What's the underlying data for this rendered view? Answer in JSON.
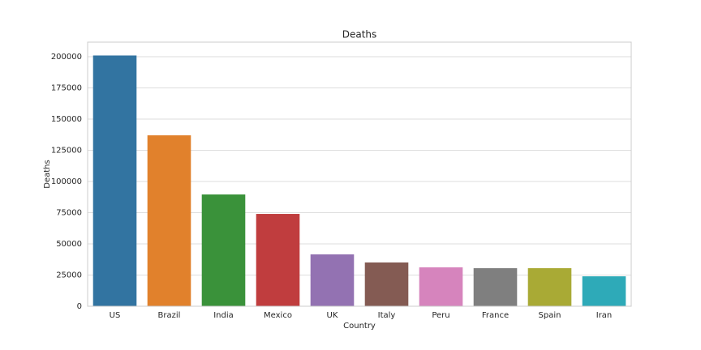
{
  "chart_data": {
    "type": "bar",
    "title": "Deaths",
    "x_label": "Country",
    "y_label": "Deaths",
    "categories": [
      "US",
      "Brazil",
      "India",
      "Mexico",
      "UK",
      "Italy",
      "Peru",
      "France",
      "Spain",
      "Iran"
    ],
    "values": [
      201000,
      137000,
      89600,
      74000,
      41600,
      35100,
      31200,
      30500,
      30500,
      24000
    ],
    "colors": [
      "#3274a1",
      "#e1812c",
      "#3a923a",
      "#c03d3e",
      "#9372b2",
      "#845b53",
      "#d684bd",
      "#7f7f7f",
      "#a9aa35",
      "#2eaab8"
    ],
    "ylim": [
      0,
      211700
    ],
    "yticks": [
      0,
      25000,
      50000,
      75000,
      100000,
      125000,
      150000,
      175000,
      200000
    ],
    "grid": true
  }
}
